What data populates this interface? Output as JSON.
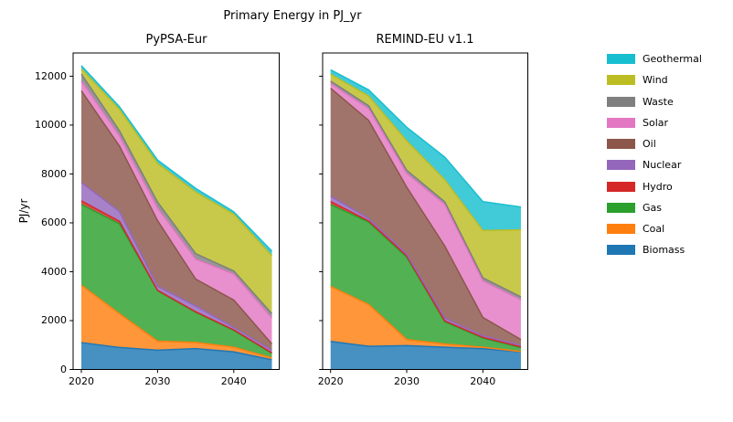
{
  "figure": {
    "title": "Primary Energy in PJ_yr",
    "background": "#ffffff"
  },
  "legend": {
    "items": [
      {
        "label": "Geothermal",
        "color": "#17becf"
      },
      {
        "label": "Wind",
        "color": "#bcbd22"
      },
      {
        "label": "Waste",
        "color": "#7f7f7f"
      },
      {
        "label": "Solar",
        "color": "#e377c2"
      },
      {
        "label": "Oil",
        "color": "#8c564b"
      },
      {
        "label": "Nuclear",
        "color": "#9467bd"
      },
      {
        "label": "Hydro",
        "color": "#d62728"
      },
      {
        "label": "Gas",
        "color": "#2ca02c"
      },
      {
        "label": "Coal",
        "color": "#ff7f0e"
      },
      {
        "label": "Biomass",
        "color": "#1f77b4"
      }
    ]
  },
  "chart_data": [
    {
      "type": "area",
      "stacked": true,
      "title": "PyPSA-Eur",
      "ylabel": "PJ/yr",
      "x": [
        2020,
        2025,
        2030,
        2035,
        2040,
        2045
      ],
      "xtick_values": [
        2020,
        2030,
        2040
      ],
      "xtick_labels": [
        "2020",
        "2030",
        "2040"
      ],
      "ytick_values": [
        0,
        2000,
        4000,
        6000,
        8000,
        10000,
        12000
      ],
      "ytick_labels": [
        "0",
        "2000",
        "4000",
        "6000",
        "8000",
        "10000",
        "12000"
      ],
      "ylim": [
        0,
        12950
      ],
      "grid": false,
      "series": [
        {
          "name": "Biomass",
          "color": "#1f77b4",
          "values": [
            1100,
            900,
            790,
            855,
            720,
            400
          ]
        },
        {
          "name": "Coal",
          "color": "#ff7f0e",
          "values": [
            2350,
            1380,
            370,
            250,
            190,
            75
          ]
        },
        {
          "name": "Gas",
          "color": "#2ca02c",
          "values": [
            3300,
            3680,
            2060,
            1235,
            685,
            185
          ]
        },
        {
          "name": "Hydro",
          "color": "#d62728",
          "values": [
            150,
            100,
            20,
            20,
            25,
            20
          ]
        },
        {
          "name": "Nuclear",
          "color": "#9467bd",
          "values": [
            750,
            400,
            165,
            240,
            100,
            110
          ]
        },
        {
          "name": "Oil",
          "color": "#8c564b",
          "values": [
            3750,
            2680,
            2685,
            1100,
            1120,
            250
          ]
        },
        {
          "name": "Solar",
          "color": "#e377c2",
          "values": [
            400,
            410,
            510,
            815,
            1060,
            1060
          ]
        },
        {
          "name": "Waste",
          "color": "#7f7f7f",
          "values": [
            290,
            220,
            250,
            225,
            130,
            180
          ]
        },
        {
          "name": "Wind",
          "color": "#bcbd22",
          "values": [
            210,
            870,
            1580,
            2520,
            2320,
            2370
          ]
        },
        {
          "name": "Geothermal",
          "color": "#17becf",
          "values": [
            130,
            110,
            140,
            150,
            100,
            190
          ]
        }
      ]
    },
    {
      "type": "area",
      "stacked": true,
      "title": "REMIND-EU v1.1",
      "ylabel": "",
      "x": [
        2020,
        2025,
        2030,
        2035,
        2040,
        2045
      ],
      "xtick_values": [
        2020,
        2030,
        2040
      ],
      "xtick_labels": [
        "2020",
        "2030",
        "2040"
      ],
      "ytick_values": [
        0,
        2000,
        4000,
        6000,
        8000,
        10000,
        12000
      ],
      "ytick_labels": [],
      "ylim": [
        0,
        12950
      ],
      "grid": false,
      "series": [
        {
          "name": "Biomass",
          "color": "#1f77b4",
          "values": [
            1150,
            950,
            975,
            910,
            850,
            720
          ]
        },
        {
          "name": "Coal",
          "color": "#ff7f0e",
          "values": [
            2250,
            1710,
            250,
            130,
            60,
            15
          ]
        },
        {
          "name": "Gas",
          "color": "#2ca02c",
          "values": [
            3350,
            3370,
            3365,
            910,
            375,
            160
          ]
        },
        {
          "name": "Hydro",
          "color": "#d62728",
          "values": [
            120,
            50,
            60,
            40,
            30,
            30
          ]
        },
        {
          "name": "Nuclear",
          "color": "#9467bd",
          "values": [
            220,
            100,
            65,
            110,
            65,
            55
          ]
        },
        {
          "name": "Oil",
          "color": "#8c564b",
          "values": [
            4420,
            4010,
            2745,
            2950,
            750,
            245
          ]
        },
        {
          "name": "Solar",
          "color": "#e377c2",
          "values": [
            190,
            480,
            560,
            1700,
            1495,
            1620
          ]
        },
        {
          "name": "Waste",
          "color": "#7f7f7f",
          "values": [
            100,
            120,
            130,
            110,
            125,
            125
          ]
        },
        {
          "name": "Wind",
          "color": "#bcbd22",
          "values": [
            280,
            400,
            1200,
            900,
            1935,
            2745
          ]
        },
        {
          "name": "Geothermal",
          "color": "#17becf",
          "values": [
            180,
            250,
            560,
            930,
            1185,
            935
          ]
        }
      ]
    }
  ]
}
